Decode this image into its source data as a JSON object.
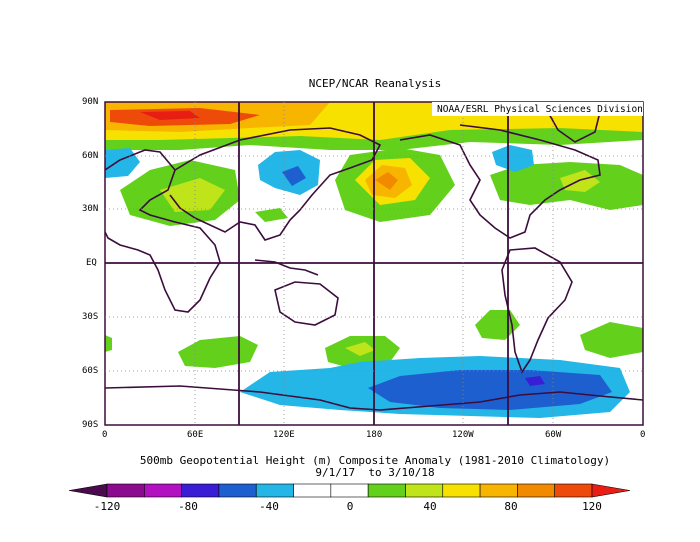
{
  "title": "NCEP/NCAR Reanalysis",
  "credit": "NOAA/ESRL Physical Sciences Division",
  "caption": {
    "line1": "500mb Geopotential Height (m) Composite Anomaly (1981-2010 Climatology)",
    "line2": "9/1/17  to 3/10/18"
  },
  "y_ticks": [
    "90N",
    "60N",
    "30N",
    "EQ",
    "30S",
    "60S",
    "90S"
  ],
  "x_ticks": [
    "0",
    "60E",
    "120E",
    "180",
    "120W",
    "60W",
    "0"
  ],
  "colorbar": {
    "labels": [
      "-120",
      "-80",
      "-40",
      "0",
      "40",
      "80",
      "120"
    ],
    "colors": [
      "#4b0a4e",
      "#8b0a8e",
      "#b210c0",
      "#3a1ed6",
      "#1e5fd0",
      "#23b6e6",
      "#ffffff",
      "#ffffff",
      "#63d11c",
      "#bfe41a",
      "#f7e100",
      "#f7b500",
      "#f28a00",
      "#ee4b0a",
      "#e81d13"
    ]
  },
  "colors": {
    "continent_outline": "#3b0d3c",
    "grid_line": "#3b0d3c",
    "positive_strong": "#ee4b0a",
    "positive_mid": "#f7b500",
    "positive_weak": "#63d11c",
    "negative_weak": "#23b6e6",
    "negative_strong": "#1e5fd0"
  }
}
